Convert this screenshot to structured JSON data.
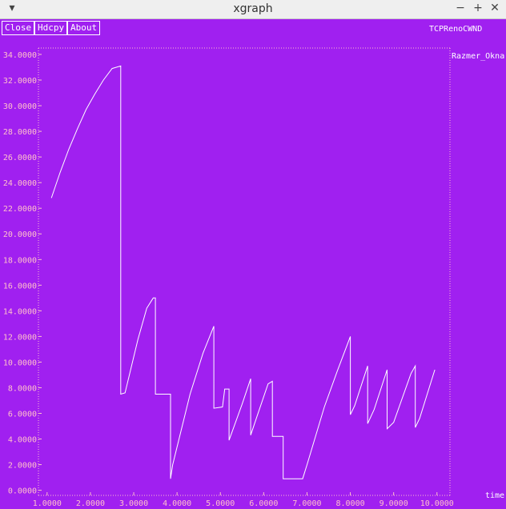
{
  "window": {
    "title": "xgraph",
    "menu_glyph": "▾",
    "minimize_glyph": "−",
    "maximize_glyph": "+",
    "close_glyph": "✕"
  },
  "toolbar": {
    "close_label": "Close",
    "hdcpy_label": "Hdcpy",
    "about_label": "About"
  },
  "chart_data": {
    "type": "line",
    "title": "TCPRenoCWND",
    "xlabel": "time",
    "ylabel": "Razmer_Okna",
    "xlim": [
      0.8,
      10.3
    ],
    "ylim": [
      -0.4,
      34.5
    ],
    "x_ticks": [
      "1.0000",
      "2.0000",
      "3.0000",
      "4.0000",
      "5.0000",
      "6.0000",
      "7.0000",
      "8.0000",
      "9.0000",
      "10.0000"
    ],
    "y_ticks": [
      "0.0000",
      "2.0000",
      "4.0000",
      "6.0000",
      "8.0000",
      "10.0000",
      "12.0000",
      "14.0000",
      "16.0000",
      "18.0000",
      "20.0000",
      "22.0000",
      "24.0000",
      "26.0000",
      "28.0000",
      "30.0000",
      "32.0000",
      "34.0000"
    ],
    "grid": false,
    "colors": {
      "background": "#a020f0",
      "line": "#ffffff",
      "axes": "#ffc0cb",
      "tick_text": "#ffc0cb"
    },
    "series": [
      {
        "points": [
          [
            1.1,
            22.8
          ],
          [
            1.3,
            24.8
          ],
          [
            1.5,
            26.6
          ],
          [
            1.7,
            28.2
          ],
          [
            1.9,
            29.7
          ],
          [
            2.1,
            30.9
          ],
          [
            2.3,
            32.0
          ],
          [
            2.5,
            32.9
          ],
          [
            2.7,
            33.1
          ],
          [
            2.7,
            7.5
          ],
          [
            2.8,
            7.6
          ],
          [
            3.1,
            11.8
          ],
          [
            3.3,
            14.2
          ],
          [
            3.45,
            15.0
          ],
          [
            3.5,
            15.0
          ],
          [
            3.5,
            7.5
          ],
          [
            3.85,
            7.5
          ],
          [
            3.85,
            0.9
          ],
          [
            3.9,
            2.0
          ],
          [
            4.3,
            7.5
          ],
          [
            4.6,
            10.7
          ],
          [
            4.85,
            12.8
          ],
          [
            4.85,
            6.4
          ],
          [
            5.05,
            6.5
          ],
          [
            5.1,
            7.9
          ],
          [
            5.2,
            7.9
          ],
          [
            5.2,
            3.9
          ],
          [
            5.5,
            6.7
          ],
          [
            5.7,
            8.7
          ],
          [
            5.7,
            4.3
          ],
          [
            5.85,
            5.8
          ],
          [
            6.1,
            8.3
          ],
          [
            6.2,
            8.5
          ],
          [
            6.2,
            4.2
          ],
          [
            6.45,
            4.2
          ],
          [
            6.45,
            0.9
          ],
          [
            6.9,
            0.9
          ],
          [
            7.0,
            2.0
          ],
          [
            7.4,
            6.5
          ],
          [
            7.7,
            9.3
          ],
          [
            8.0,
            12.0
          ],
          [
            8.0,
            5.9
          ],
          [
            8.1,
            6.6
          ],
          [
            8.4,
            9.7
          ],
          [
            8.4,
            5.2
          ],
          [
            8.55,
            6.3
          ],
          [
            8.85,
            9.4
          ],
          [
            8.85,
            4.8
          ],
          [
            9.0,
            5.3
          ],
          [
            9.4,
            9.1
          ],
          [
            9.5,
            9.7
          ],
          [
            9.5,
            4.9
          ],
          [
            9.6,
            5.6
          ],
          [
            9.95,
            9.4
          ]
        ]
      }
    ]
  }
}
